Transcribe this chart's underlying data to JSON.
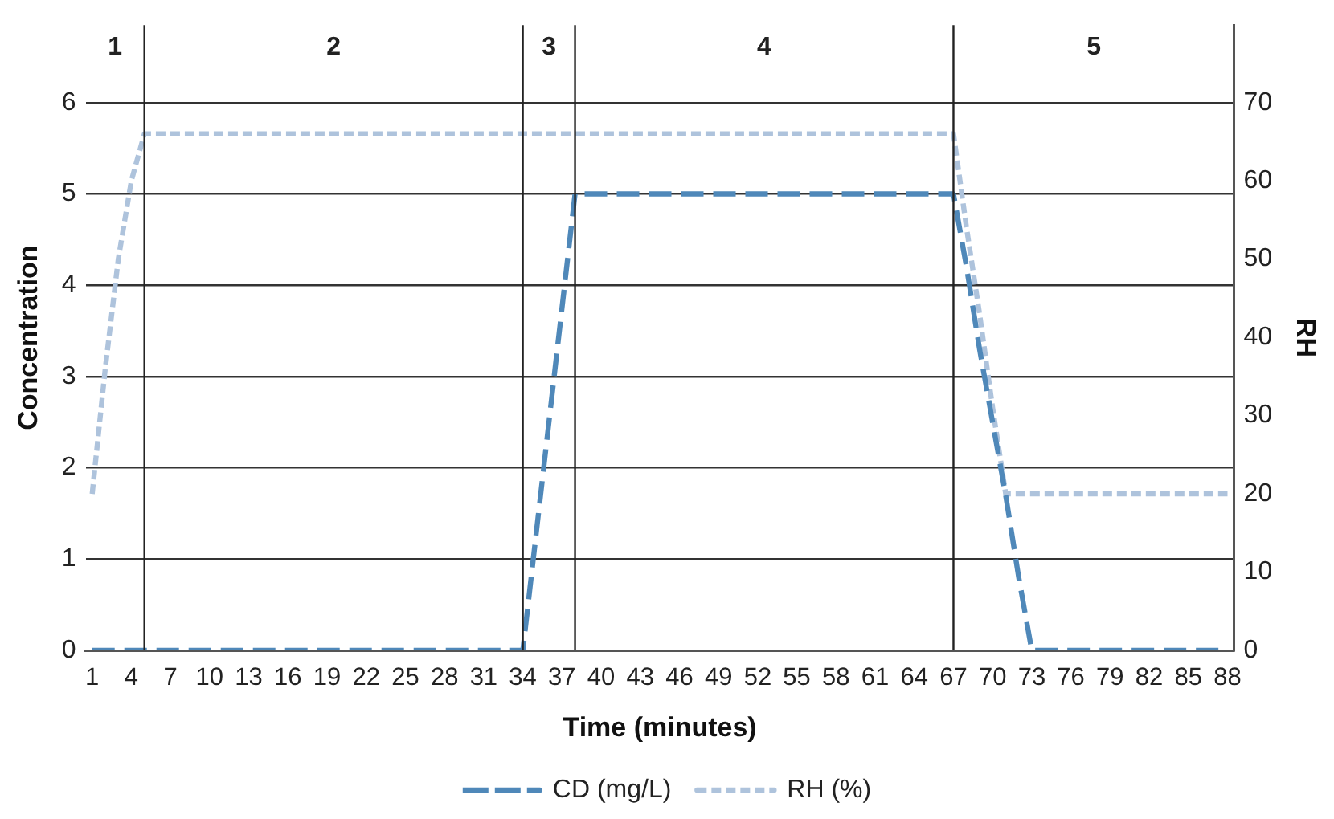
{
  "chart_data": {
    "type": "line",
    "xlabel": "Time (minutes)",
    "ylabel": "Concentration",
    "y2label": "RH",
    "x": [
      1,
      2,
      3,
      4,
      5,
      6,
      7,
      8,
      9,
      10,
      11,
      12,
      13,
      14,
      15,
      16,
      17,
      18,
      19,
      20,
      21,
      22,
      23,
      24,
      25,
      26,
      27,
      28,
      29,
      30,
      31,
      32,
      33,
      34,
      35,
      36,
      37,
      38,
      39,
      40,
      41,
      42,
      43,
      44,
      45,
      46,
      47,
      48,
      49,
      50,
      51,
      52,
      53,
      54,
      55,
      56,
      57,
      58,
      59,
      60,
      61,
      62,
      63,
      64,
      65,
      66,
      67,
      68,
      69,
      70,
      71,
      72,
      73,
      74,
      75,
      76,
      77,
      78,
      79,
      80,
      81,
      82,
      83,
      84,
      85,
      86,
      87,
      88
    ],
    "series": [
      {
        "name": "CD (mg/L)",
        "color": "#4f88b9",
        "line_style": "dashed",
        "values": [
          0,
          0,
          0,
          0,
          0,
          0,
          0,
          0,
          0,
          0,
          0,
          0,
          0,
          0,
          0,
          0,
          0,
          0,
          0,
          0,
          0,
          0,
          0,
          0,
          0,
          0,
          0,
          0,
          0,
          0,
          0,
          0,
          0,
          0,
          1.25,
          2.5,
          3.75,
          5,
          5,
          5,
          5,
          5,
          5,
          5,
          5,
          5,
          5,
          5,
          5,
          5,
          5,
          5,
          5,
          5,
          5,
          5,
          5,
          5,
          5,
          5,
          5,
          5,
          5,
          5,
          5,
          5,
          5,
          4.2,
          3.3,
          2.5,
          1.7,
          0.8,
          0,
          0,
          0,
          0,
          0,
          0,
          0,
          0,
          0,
          0,
          0,
          0,
          0,
          0,
          0,
          0
        ]
      },
      {
        "name": "RH (%)",
        "color": "#aec3dc",
        "line_style": "dotted",
        "axis": "y2",
        "values": [
          20,
          36,
          50,
          60,
          66,
          66,
          66,
          66,
          66,
          66,
          66,
          66,
          66,
          66,
          66,
          66,
          66,
          66,
          66,
          66,
          66,
          66,
          66,
          66,
          66,
          66,
          66,
          66,
          66,
          66,
          66,
          66,
          66,
          66,
          66,
          66,
          66,
          66,
          66,
          66,
          66,
          66,
          66,
          66,
          66,
          66,
          66,
          66,
          66,
          66,
          66,
          66,
          66,
          66,
          66,
          66,
          66,
          66,
          66,
          66,
          66,
          66,
          66,
          66,
          66,
          66,
          66,
          54,
          43,
          31,
          20,
          20,
          20,
          20,
          20,
          20,
          20,
          20,
          20,
          20,
          20,
          20,
          20,
          20,
          20,
          20,
          20,
          20
        ]
      }
    ],
    "xlim": [
      0.5,
      88.5
    ],
    "xticks": [
      1,
      4,
      7,
      10,
      13,
      16,
      19,
      22,
      25,
      28,
      31,
      34,
      37,
      40,
      43,
      46,
      49,
      52,
      55,
      58,
      61,
      64,
      67,
      70,
      73,
      76,
      79,
      82,
      85,
      88
    ],
    "ylim": [
      0,
      6.85
    ],
    "yticks": [
      0,
      1,
      2,
      3,
      4,
      5,
      6
    ],
    "y2lim": [
      0,
      79.9
    ],
    "y2ticks": [
      0,
      10,
      20,
      30,
      40,
      50,
      60,
      70
    ],
    "ref_lines": [
      {
        "axis": "x",
        "value": 5,
        "color": "#222222"
      },
      {
        "axis": "x",
        "value": 34,
        "color": "#222222"
      },
      {
        "axis": "x",
        "value": 38,
        "color": "#222222"
      },
      {
        "axis": "x",
        "value": 67,
        "color": "#222222"
      }
    ],
    "annotations": [
      "1",
      "2",
      "3",
      "4",
      "5"
    ],
    "grid": "y",
    "legend": "bottom",
    "marker": "none"
  }
}
